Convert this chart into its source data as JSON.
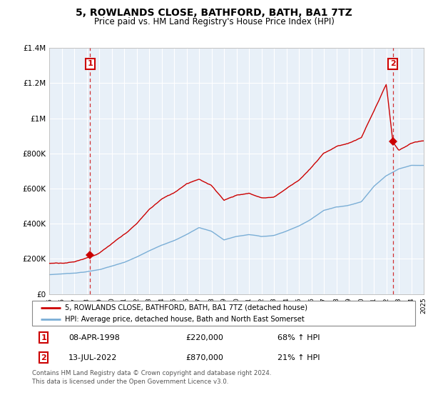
{
  "title": "5, ROWLANDS CLOSE, BATHFORD, BATH, BA1 7TZ",
  "subtitle": "Price paid vs. HM Land Registry's House Price Index (HPI)",
  "legend_line1": "5, ROWLANDS CLOSE, BATHFORD, BATH, BA1 7TZ (detached house)",
  "legend_line2": "HPI: Average price, detached house, Bath and North East Somerset",
  "footer": "Contains HM Land Registry data © Crown copyright and database right 2024.\nThis data is licensed under the Open Government Licence v3.0.",
  "sale1_date": "08-APR-1998",
  "sale1_price": "£220,000",
  "sale1_hpi": "68% ↑ HPI",
  "sale2_date": "13-JUL-2022",
  "sale2_price": "£870,000",
  "sale2_hpi": "21% ↑ HPI",
  "ylim": [
    0,
    1400000
  ],
  "yticks": [
    0,
    200000,
    400000,
    600000,
    800000,
    1000000,
    1200000,
    1400000
  ],
  "ytick_labels": [
    "£0",
    "£200K",
    "£400K",
    "£600K",
    "£800K",
    "£1M",
    "£1.2M",
    "£1.4M"
  ],
  "plot_bg_color": "#e8f0f8",
  "background_color": "#ffffff",
  "grid_color": "#ffffff",
  "red_color": "#cc0000",
  "blue_color": "#7aaed6",
  "sale1_year": 1998.28,
  "sale1_value": 220000,
  "sale2_year": 2022.53,
  "sale2_value": 870000,
  "xmin": 1995,
  "xmax": 2025,
  "hpi_key_years": [
    1995,
    1996,
    1997,
    1998,
    1999,
    2000,
    2001,
    2002,
    2003,
    2004,
    2005,
    2006,
    2007,
    2008,
    2009,
    2010,
    2011,
    2012,
    2013,
    2014,
    2015,
    2016,
    2017,
    2018,
    2019,
    2020,
    2021,
    2022,
    2023,
    2024,
    2025
  ],
  "hpi_key_vals": [
    110000,
    115000,
    120000,
    128000,
    140000,
    160000,
    180000,
    210000,
    245000,
    280000,
    305000,
    340000,
    380000,
    360000,
    310000,
    330000,
    340000,
    330000,
    335000,
    360000,
    390000,
    430000,
    480000,
    500000,
    510000,
    530000,
    620000,
    680000,
    720000,
    740000,
    740000
  ],
  "red_key_years": [
    1995,
    1996,
    1997,
    1998.28,
    1999,
    2000,
    2001,
    2002,
    2003,
    2004,
    2005,
    2006,
    2007,
    2008,
    2009,
    2010,
    2011,
    2012,
    2013,
    2014,
    2015,
    2016,
    2017,
    2018,
    2019,
    2020,
    2021,
    2022.0,
    2022.53,
    2023,
    2024,
    2025
  ],
  "red_key_vals": [
    175000,
    180000,
    188000,
    220000,
    240000,
    290000,
    340000,
    400000,
    480000,
    540000,
    575000,
    630000,
    660000,
    620000,
    540000,
    570000,
    580000,
    555000,
    560000,
    610000,
    660000,
    730000,
    810000,
    850000,
    870000,
    900000,
    1050000,
    1200000,
    870000,
    820000,
    860000,
    870000
  ]
}
